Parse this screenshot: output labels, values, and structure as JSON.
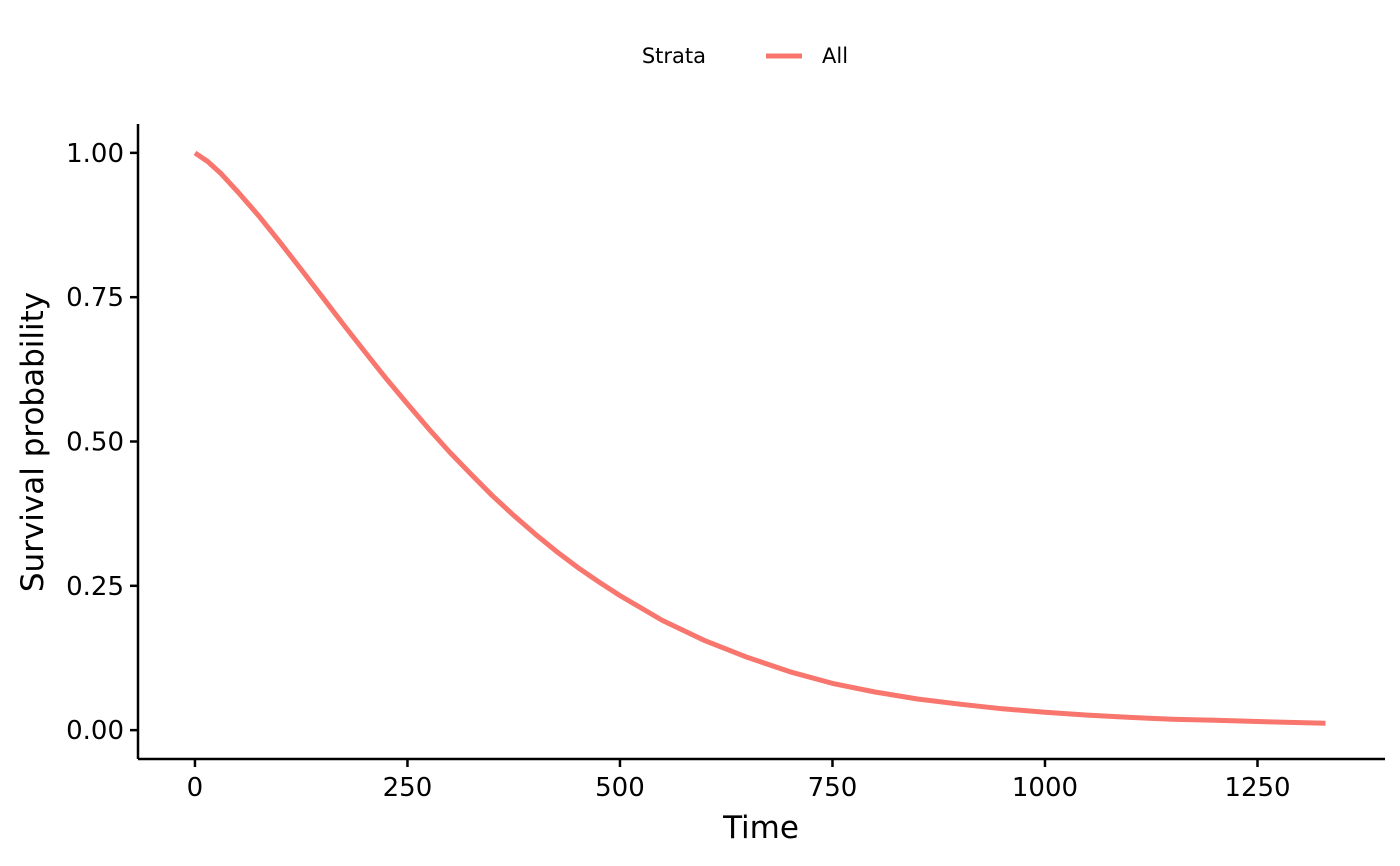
{
  "chart_data": {
    "type": "line",
    "title": "",
    "xlabel": "Time",
    "ylabel": "Survival probability",
    "xlim": [
      -67,
      1400
    ],
    "ylim": [
      -0.05,
      1.05
    ],
    "x_ticks": [
      0,
      250,
      500,
      750,
      1000,
      1250
    ],
    "x_tick_labels": [
      "0",
      "250",
      "500",
      "750",
      "1000",
      "1250"
    ],
    "y_ticks": [
      0,
      0.25,
      0.5,
      0.75,
      1.0
    ],
    "y_tick_labels": [
      "0.00",
      "0.25",
      "0.50",
      "0.75",
      "1.00"
    ],
    "grid": false,
    "legend": {
      "title": "Strata",
      "placement": "top",
      "entries": [
        "All"
      ]
    },
    "series": [
      {
        "name": "All",
        "color": "#F8766D",
        "x": [
          0,
          15,
          30,
          50,
          75,
          100,
          125,
          150,
          175,
          200,
          225,
          250,
          275,
          300,
          325,
          350,
          375,
          400,
          425,
          450,
          475,
          500,
          550,
          600,
          650,
          700,
          750,
          800,
          850,
          900,
          950,
          1000,
          1050,
          1100,
          1150,
          1175,
          1200,
          1250,
          1300,
          1330
        ],
        "y": [
          1.0,
          0.985,
          0.965,
          0.933,
          0.891,
          0.845,
          0.798,
          0.75,
          0.702,
          0.655,
          0.609,
          0.565,
          0.522,
          0.481,
          0.443,
          0.406,
          0.372,
          0.34,
          0.31,
          0.282,
          0.257,
          0.233,
          0.19,
          0.155,
          0.126,
          0.101,
          0.081,
          0.066,
          0.054,
          0.045,
          0.037,
          0.031,
          0.026,
          0.022,
          0.019,
          0.018,
          0.017,
          0.015,
          0.013,
          0.012
        ]
      }
    ]
  }
}
